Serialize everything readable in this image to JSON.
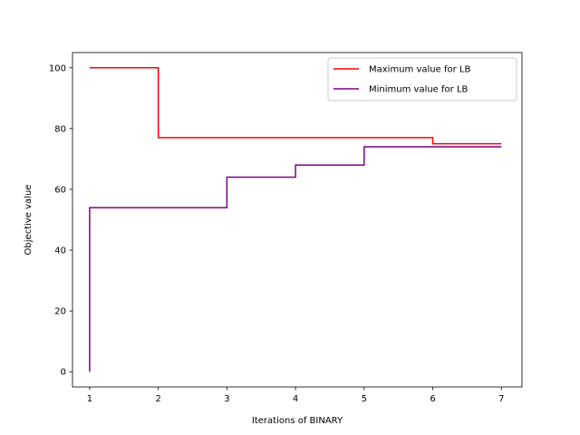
{
  "chart_data": {
    "type": "line",
    "step": "post",
    "xlabel": "Iterations of BINARY",
    "ylabel": "Objective value",
    "xlim": [
      0.75,
      7.3
    ],
    "ylim": [
      -5,
      105
    ],
    "xticks": [
      1,
      2,
      3,
      4,
      5,
      6,
      7
    ],
    "yticks": [
      0,
      20,
      40,
      60,
      80,
      100
    ],
    "grid": false,
    "legend_position": "top-right",
    "series": [
      {
        "name": "Maximum value for LB",
        "color": "#ff0000",
        "x": [
          1,
          2,
          3,
          4,
          5,
          6,
          7
        ],
        "y": [
          100,
          77,
          77,
          77,
          77,
          75,
          75
        ]
      },
      {
        "name": "Minimum value for LB",
        "color": "#800080",
        "x": [
          1,
          1,
          2,
          3,
          4,
          5,
          6,
          7
        ],
        "y": [
          0,
          54,
          54,
          64,
          68,
          74,
          74,
          74
        ]
      }
    ]
  }
}
